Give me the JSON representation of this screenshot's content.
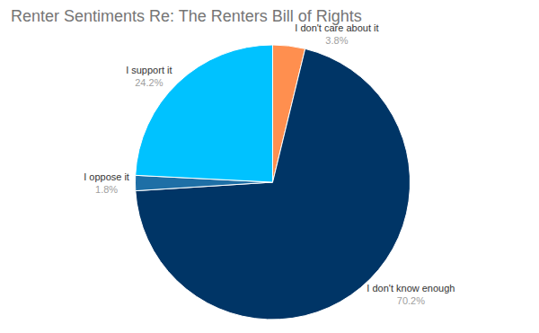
{
  "chart_data": {
    "type": "pie",
    "title": "Renter Sentiments Re: The Renters Bill of Rights",
    "categories": [
      "I don't care about it",
      "I don't know enough",
      "I oppose it",
      "I support it"
    ],
    "values": [
      3.8,
      70.2,
      1.8,
      24.2
    ],
    "value_labels": [
      "3.8%",
      "70.2%",
      "1.8%",
      "24.2%"
    ],
    "colors": [
      "#ff8f4f",
      "#003566",
      "#1e6fa6",
      "#00c2ff"
    ],
    "data_labels": true
  }
}
